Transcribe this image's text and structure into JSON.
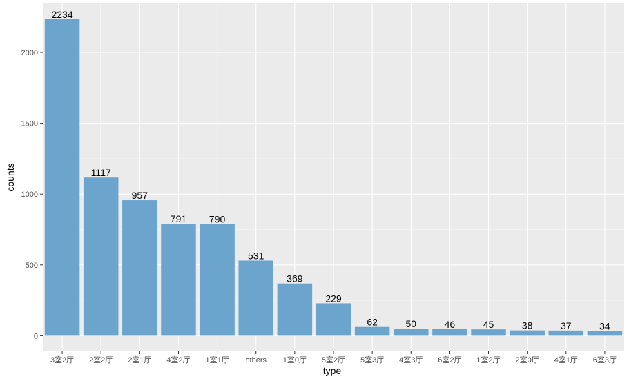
{
  "chart_data": {
    "type": "bar",
    "categories": [
      "3室2厅",
      "2室2厅",
      "2室1厅",
      "4室2厅",
      "1室1厅",
      "others",
      "1室0厅",
      "5室2厅",
      "5室3厅",
      "4室3厅",
      "6室2厅",
      "1室2厅",
      "2室0厅",
      "4室1厅",
      "6室3厅"
    ],
    "values": [
      2234,
      1117,
      957,
      791,
      790,
      531,
      369,
      229,
      62,
      50,
      46,
      45,
      38,
      37,
      34
    ],
    "xlabel": "type",
    "ylabel": "counts",
    "ylim": [
      -110,
      2346
    ],
    "yticks": [
      0,
      500,
      1000,
      1500,
      2000
    ],
    "grid": true,
    "colors": {
      "bar": "#6ba5cd",
      "panel_background": "#ebebeb",
      "grid_major": "#ffffff",
      "grid_minor": "#f5f5f5",
      "tick_text": "#4d4d4d",
      "label_text": "#000000"
    }
  }
}
